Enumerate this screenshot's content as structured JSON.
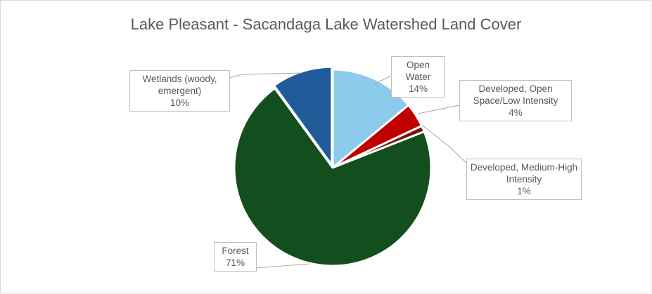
{
  "chart_data": {
    "type": "pie",
    "title": "Lake Pleasant - Sacandaga Lake Watershed Land Cover",
    "categories": [
      "Open Water",
      "Developed, Open Space/Low Intensity",
      "Developed, Medium-High Intensity",
      "Forest",
      "Wetlands (woody, emergent)"
    ],
    "values": [
      14,
      4,
      1,
      71,
      10
    ],
    "value_labels": [
      "14%",
      "4%",
      "1%",
      "71%",
      "10%"
    ],
    "colors": [
      "#8ccbec",
      "#c00000",
      "#7f1010",
      "#134f1e",
      "#1f5c99"
    ]
  }
}
